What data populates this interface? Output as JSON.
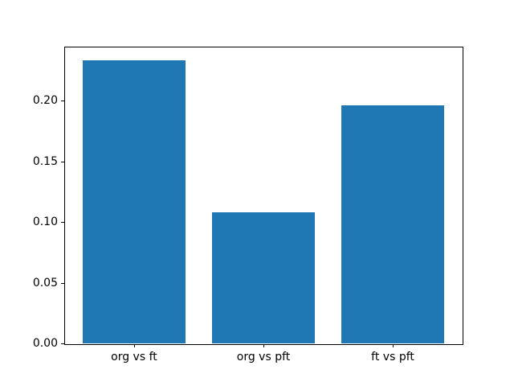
{
  "chart_data": {
    "type": "bar",
    "categories": [
      "org vs ft",
      "org vs pft",
      "ft vs pft"
    ],
    "values": [
      0.233,
      0.108,
      0.196
    ],
    "title": "",
    "xlabel": "",
    "ylabel": "",
    "ylim": [
      0,
      0.2446
    ],
    "xlim": [
      -0.54,
      2.54
    ],
    "yticks": [
      0.0,
      0.05,
      0.1,
      0.15,
      0.2
    ],
    "ytick_labels": [
      "0.00",
      "0.05",
      "0.10",
      "0.15",
      "0.20"
    ],
    "bar_width_units": 0.8,
    "bar_color": "#1f77b4",
    "background_color": "#ffffff",
    "spine_color": "#000000",
    "grid": false,
    "legend": false
  }
}
